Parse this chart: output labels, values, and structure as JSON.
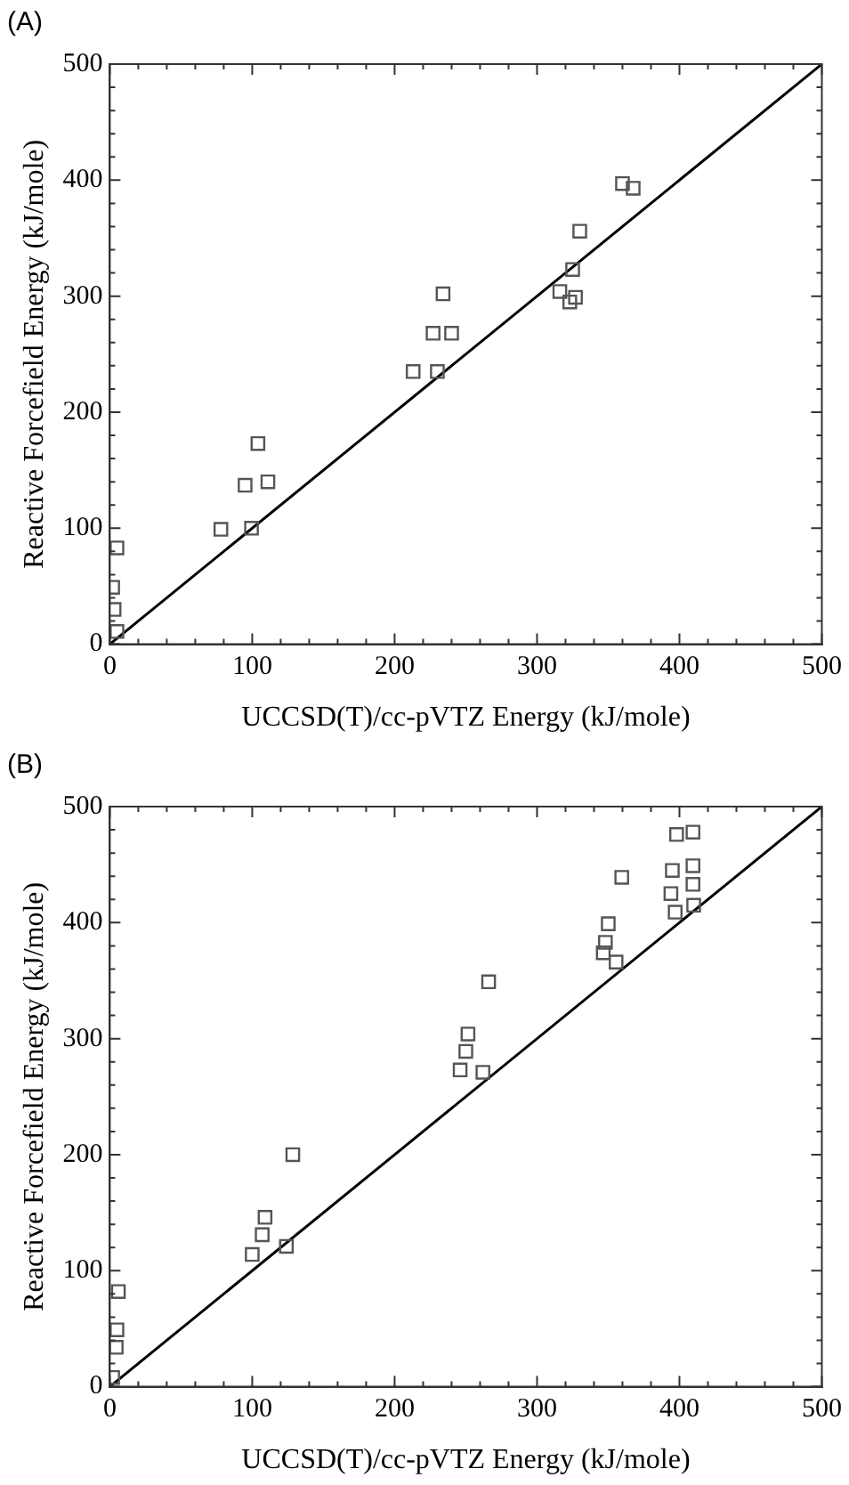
{
  "chart_data": [
    {
      "type": "scatter",
      "title": "(A)",
      "xlabel": "UCCSD(T)/cc-pVTZ Energy (kJ/mole)",
      "ylabel": "Reactive Forcefield Energy (kJ/mole)",
      "xlim": [
        0,
        500
      ],
      "ylim": [
        0,
        500
      ],
      "xticks": [
        0,
        {
          "value": 20,
          "label": null
        },
        {
          "value": 40,
          "label": null
        },
        {
          "value": 60,
          "label": null
        },
        {
          "value": 80,
          "label": null
        },
        100,
        {
          "value": 120,
          "label": null
        },
        {
          "value": 140,
          "label": null
        },
        {
          "value": 160,
          "label": null
        },
        {
          "value": 180,
          "label": null
        },
        200,
        {
          "value": 220,
          "label": null
        },
        {
          "value": 240,
          "label": null
        },
        {
          "value": 260,
          "label": null
        },
        {
          "value": 280,
          "label": null
        },
        300,
        {
          "value": 320,
          "label": null
        },
        {
          "value": 340,
          "label": null
        },
        {
          "value": 360,
          "label": null
        },
        {
          "value": 380,
          "label": null
        },
        400,
        {
          "value": 420,
          "label": null
        },
        {
          "value": 440,
          "label": null
        },
        {
          "value": 460,
          "label": null
        },
        {
          "value": 480,
          "label": null
        },
        500
      ],
      "yticks": [
        0,
        {
          "value": 20,
          "label": null
        },
        {
          "value": 40,
          "label": null
        },
        {
          "value": 60,
          "label": null
        },
        {
          "value": 80,
          "label": null
        },
        100,
        {
          "value": 120,
          "label": null
        },
        {
          "value": 140,
          "label": null
        },
        {
          "value": 160,
          "label": null
        },
        {
          "value": 180,
          "label": null
        },
        200,
        {
          "value": 220,
          "label": null
        },
        {
          "value": 240,
          "label": null
        },
        {
          "value": 260,
          "label": null
        },
        {
          "value": 280,
          "label": null
        },
        300,
        {
          "value": 320,
          "label": null
        },
        {
          "value": 340,
          "label": null
        },
        {
          "value": 360,
          "label": null
        },
        {
          "value": 380,
          "label": null
        },
        400,
        {
          "value": 420,
          "label": null
        },
        {
          "value": 440,
          "label": null
        },
        {
          "value": 460,
          "label": null
        },
        {
          "value": 480,
          "label": null
        },
        500
      ],
      "grid": false,
      "legend": false,
      "series": [
        {
          "color": "#555555",
          "marker": "square",
          "x": [
            360,
            367.5,
            330,
            325,
            316,
            323,
            327,
            234,
            227,
            240,
            213,
            230,
            104,
            95,
            111,
            78,
            99.5,
            5,
            2,
            3,
            5
          ],
          "values": [
            397,
            393,
            356,
            323,
            304,
            295,
            299,
            302,
            268,
            268,
            235,
            235,
            173,
            137,
            140,
            99,
            100,
            83,
            49,
            30,
            11
          ]
        },
        {
          "type": "line",
          "color": "#000000",
          "marker": "none",
          "x": [
            0,
            500
          ],
          "values": [
            0,
            500
          ]
        }
      ]
    },
    {
      "type": "scatter",
      "title": "(B)",
      "xlabel": "UCCSD(T)/cc-pVTZ Energy (kJ/mole)",
      "ylabel": "Reactive Forcefield Energy (kJ/mole)",
      "xlim": [
        0,
        500
      ],
      "ylim": [
        0,
        500
      ],
      "xticks": [
        0,
        {
          "value": 20,
          "label": null
        },
        {
          "value": 40,
          "label": null
        },
        {
          "value": 60,
          "label": null
        },
        {
          "value": 80,
          "label": null
        },
        100,
        {
          "value": 120,
          "label": null
        },
        {
          "value": 140,
          "label": null
        },
        {
          "value": 160,
          "label": null
        },
        {
          "value": 180,
          "label": null
        },
        200,
        {
          "value": 220,
          "label": null
        },
        {
          "value": 240,
          "label": null
        },
        {
          "value": 260,
          "label": null
        },
        {
          "value": 280,
          "label": null
        },
        300,
        {
          "value": 320,
          "label": null
        },
        {
          "value": 340,
          "label": null
        },
        {
          "value": 360,
          "label": null
        },
        {
          "value": 380,
          "label": null
        },
        400,
        {
          "value": 420,
          "label": null
        },
        {
          "value": 440,
          "label": null
        },
        {
          "value": 460,
          "label": null
        },
        {
          "value": 480,
          "label": null
        },
        500
      ],
      "yticks": [
        0,
        {
          "value": 20,
          "label": null
        },
        {
          "value": 40,
          "label": null
        },
        {
          "value": 60,
          "label": null
        },
        {
          "value": 80,
          "label": null
        },
        100,
        {
          "value": 120,
          "label": null
        },
        {
          "value": 140,
          "label": null
        },
        {
          "value": 160,
          "label": null
        },
        {
          "value": 180,
          "label": null
        },
        200,
        {
          "value": 220,
          "label": null
        },
        {
          "value": 240,
          "label": null
        },
        {
          "value": 260,
          "label": null
        },
        {
          "value": 280,
          "label": null
        },
        300,
        {
          "value": 320,
          "label": null
        },
        {
          "value": 340,
          "label": null
        },
        {
          "value": 360,
          "label": null
        },
        {
          "value": 380,
          "label": null
        },
        400,
        {
          "value": 420,
          "label": null
        },
        {
          "value": 440,
          "label": null
        },
        {
          "value": 460,
          "label": null
        },
        {
          "value": 480,
          "label": null
        },
        500
      ],
      "grid": false,
      "legend": false,
      "series": [
        {
          "color": "#555555",
          "marker": "square",
          "x": [
            398,
            409.5,
            395,
            409.5,
            409.5,
            394,
            397,
            410,
            359.5,
            350,
            348,
            346.5,
            355.5,
            266,
            251.5,
            250,
            246,
            262,
            128.5,
            109,
            107,
            100,
            124,
            6,
            5,
            4.5,
            2
          ],
          "values": [
            476,
            478,
            445,
            449,
            433,
            425,
            409,
            415,
            439,
            399,
            383,
            374,
            366,
            349,
            304,
            289,
            273,
            271,
            200,
            146,
            131,
            114,
            121,
            82,
            49,
            34,
            8
          ]
        },
        {
          "type": "line",
          "color": "#000000",
          "marker": "none",
          "x": [
            0,
            500
          ],
          "values": [
            0,
            500
          ]
        }
      ]
    }
  ]
}
